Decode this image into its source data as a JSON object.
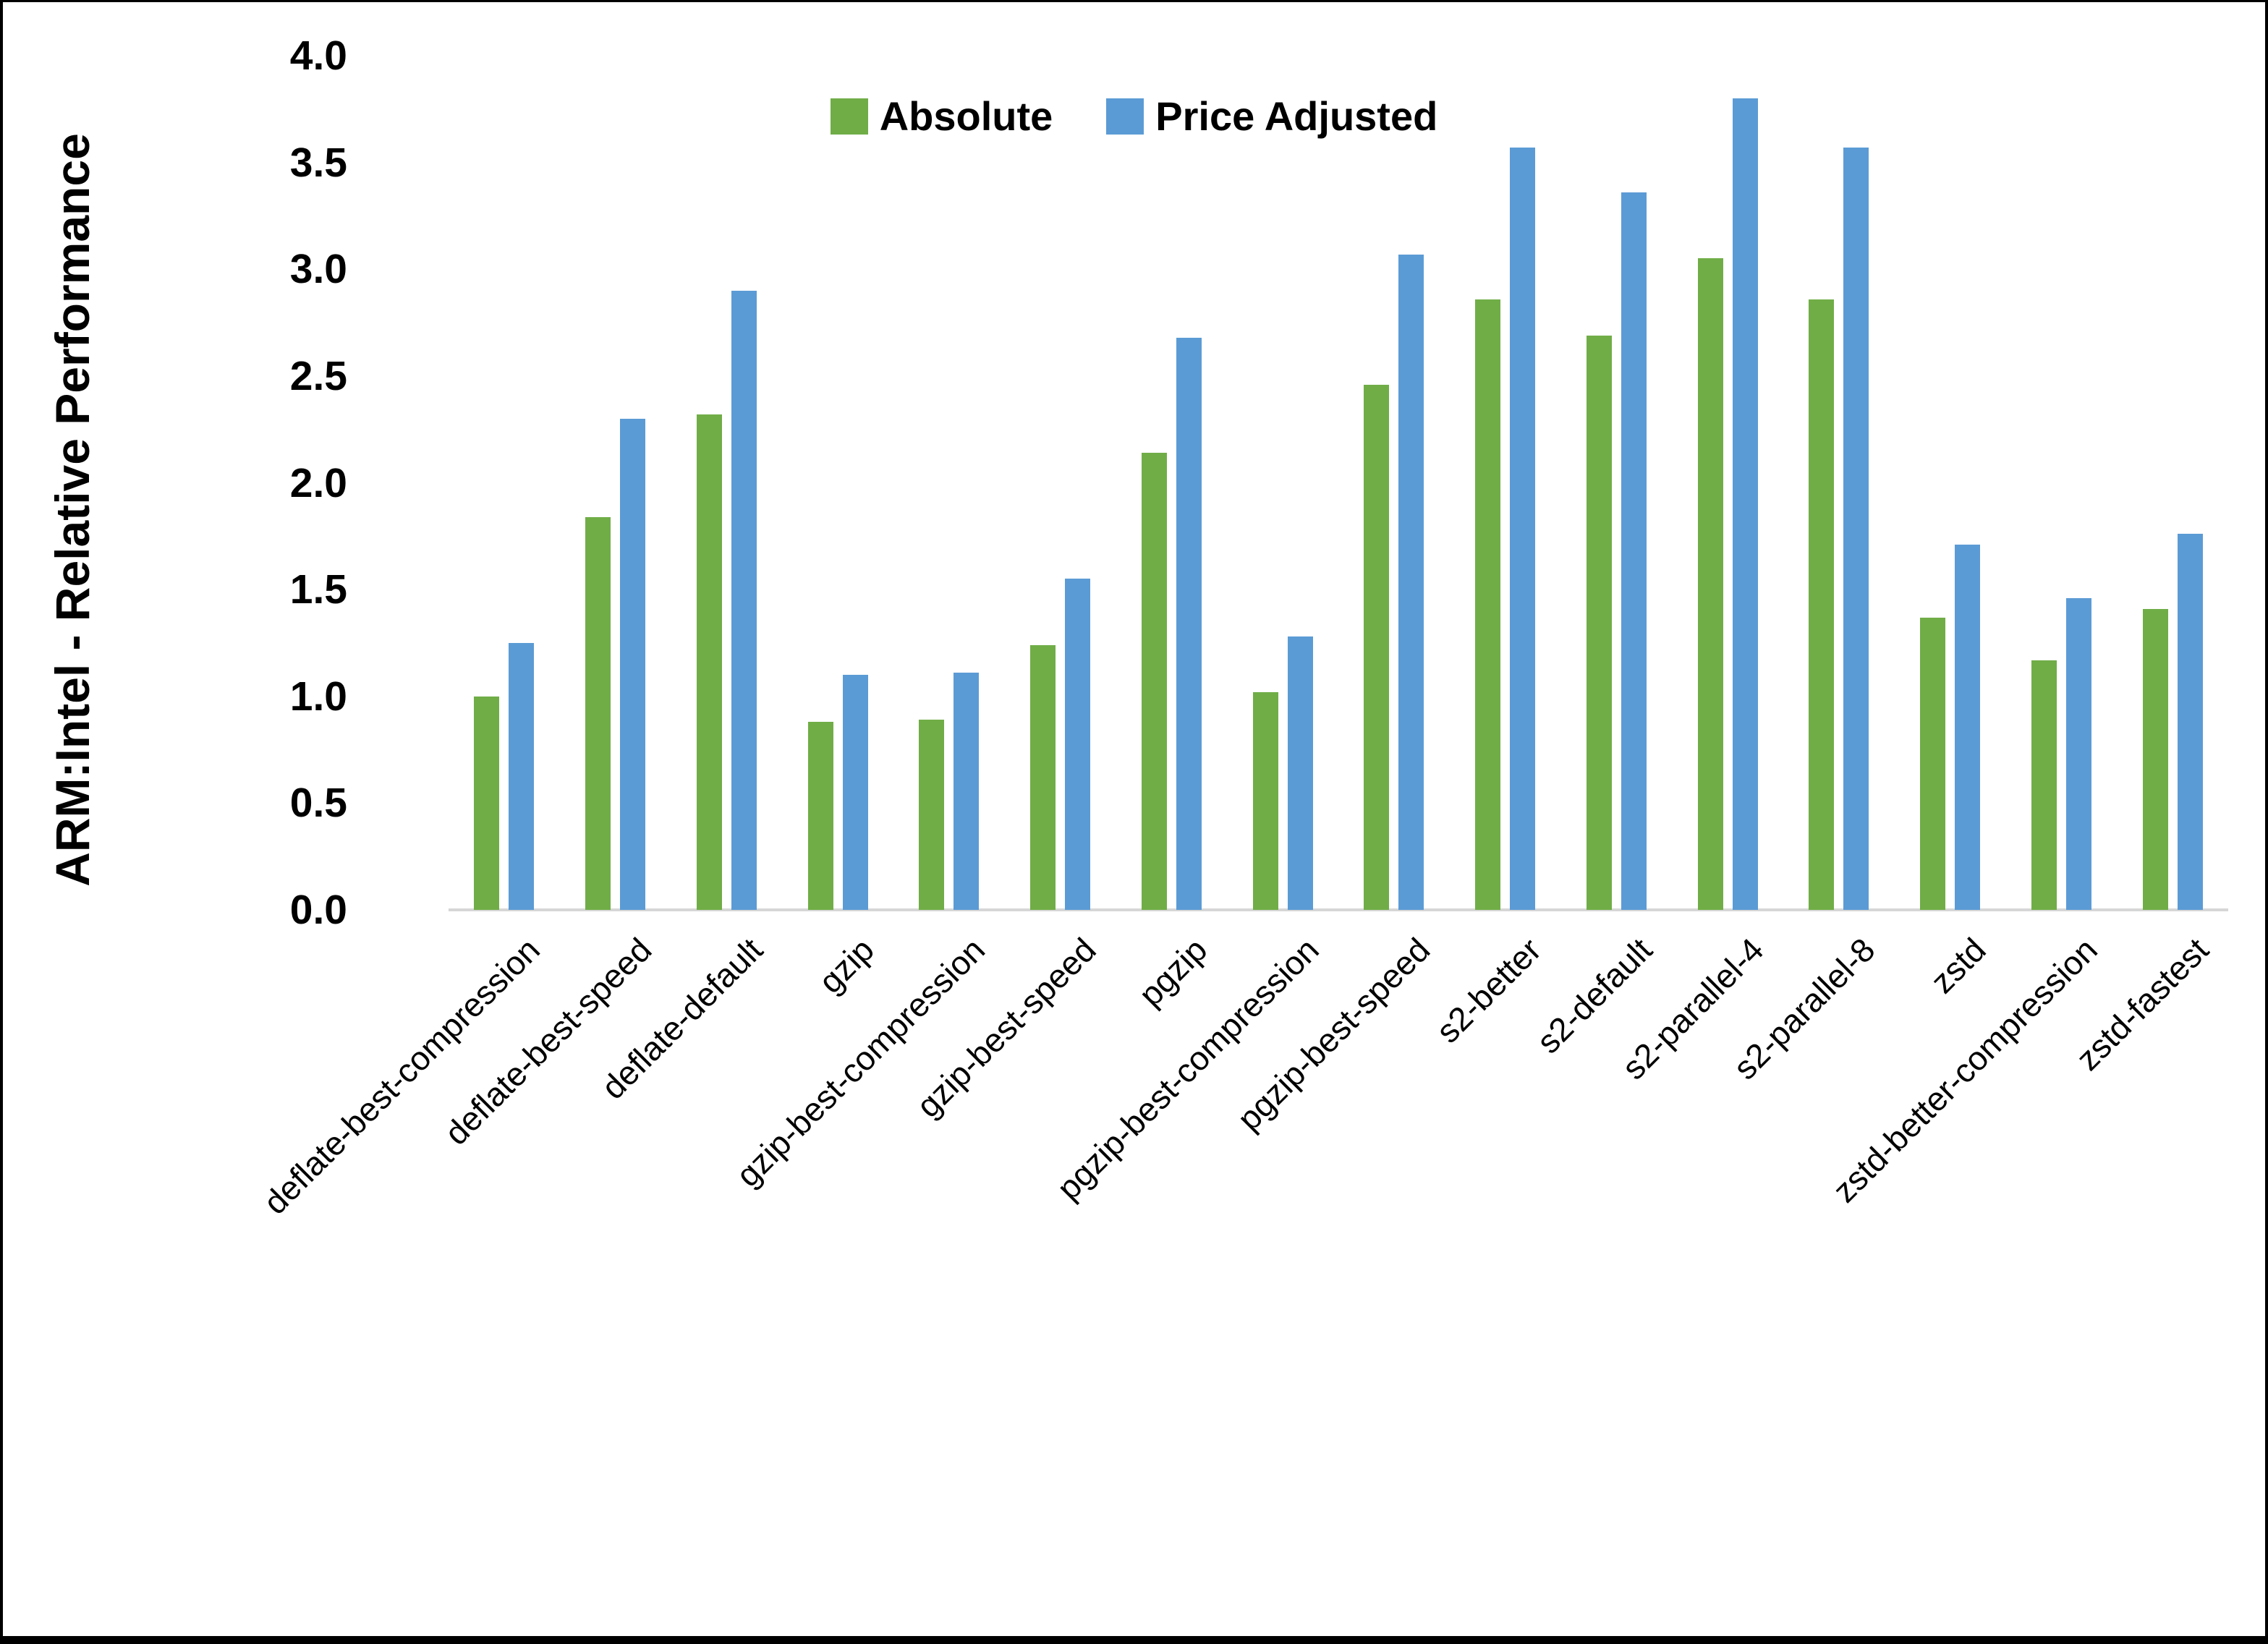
{
  "figure": {
    "y_axis_title": "ARM:Intel - Relative Performance"
  },
  "chart_data": {
    "type": "bar",
    "title": "",
    "xlabel": "",
    "ylabel": "ARM:Intel - Relative Performance",
    "ylim": [
      0.0,
      4.0
    ],
    "ytick_labels": [
      "0.0",
      "0.5",
      "1.0",
      "1.5",
      "2.0",
      "2.5",
      "3.0",
      "3.5",
      "4.0"
    ],
    "grid": false,
    "legend_position": "top-center",
    "categories": [
      "deflate-best-compression",
      "deflate-best-speed",
      "deflate-default",
      "gzip",
      "gzip-best-compression",
      "gzip-best-speed",
      "pgzip",
      "pgzip-best-compression",
      "pgzip-best-speed",
      "s2-better",
      "s2-default",
      "s2-parallel-4",
      "s2-parallel-8",
      "zstd",
      "zstd-better-compression",
      "zstd-fastest"
    ],
    "series": [
      {
        "name": "Absolute",
        "color": "#70AD47",
        "values": [
          1.0,
          1.84,
          2.32,
          0.88,
          0.89,
          1.24,
          2.14,
          1.02,
          2.46,
          2.86,
          2.69,
          3.05,
          2.86,
          1.37,
          1.17,
          1.41
        ]
      },
      {
        "name": "Price Adjusted",
        "color": "#5B9BD5",
        "values": [
          1.25,
          2.3,
          2.9,
          1.1,
          1.11,
          1.55,
          2.68,
          1.28,
          3.07,
          3.57,
          3.36,
          3.8,
          3.57,
          1.71,
          1.46,
          1.76
        ]
      }
    ]
  }
}
